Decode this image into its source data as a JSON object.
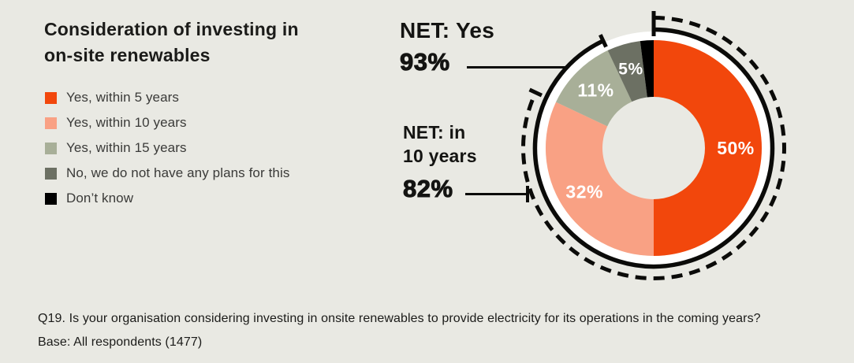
{
  "background_color": "#E9E9E3",
  "title": {
    "lines": [
      "Consideration of investing in",
      "on-site renewables"
    ]
  },
  "legend": {
    "items": [
      {
        "label": "Yes, within 5 years",
        "color": "#F2470C"
      },
      {
        "label": "Yes, within 10 years",
        "color": "#F9A184"
      },
      {
        "label": "Yes, within 15 years",
        "color": "#A8AF98"
      },
      {
        "label": "No, we do not have any plans for this",
        "color": "#6C7063"
      },
      {
        "label": "Don’t know",
        "color": "#000000"
      }
    ]
  },
  "callouts": {
    "net_yes": {
      "label": "NET: Yes",
      "value": "93%"
    },
    "net_10": {
      "line1": "NET: in",
      "line2": "10 years",
      "value": "82%"
    }
  },
  "footnote": {
    "line1": "Q19. Is your organisation considering investing in onsite renewables to provide electricity for its operations in the coming years?",
    "line2": "Base: All respondents (1477)"
  },
  "chart_data": {
    "type": "pie",
    "subtype": "donut",
    "title": "Consideration of investing in on-site renewables",
    "start_angle": "12 o'clock",
    "direction": "clockwise",
    "hole_ratio": 0.47,
    "data_label_color": "#FFFFFF",
    "segments": [
      {
        "label": "Yes, within 5 years",
        "value": 50,
        "data_label": "50%",
        "color": "#F2470C"
      },
      {
        "label": "Yes, within 10 years",
        "value": 32,
        "data_label": "32%",
        "color": "#F9A184"
      },
      {
        "label": "Yes, within 15 years",
        "value": 11,
        "data_label": "11%",
        "color": "#A8AF98"
      },
      {
        "label": "No, we do not have any plans for this",
        "value": 5,
        "data_label": "5%",
        "color": "#6C7063"
      },
      {
        "label": "Don’t know",
        "value": 2,
        "data_label": "",
        "color": "#000000"
      }
    ],
    "net_arcs": [
      {
        "name": "net-yes",
        "label": "NET: Yes",
        "percent": 93,
        "style": "solid"
      },
      {
        "name": "net-in-10-years",
        "label": "NET: in 10 years",
        "percent": 82,
        "style": "dashed"
      }
    ]
  }
}
